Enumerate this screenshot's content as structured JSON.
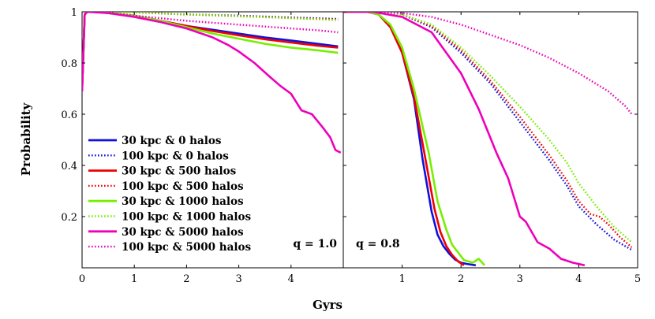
{
  "chart_data": {
    "type": "line",
    "xlabel": "Gyrs",
    "ylabel": "Probability",
    "y_ticks": [
      "0.2",
      "0.4",
      "0.6",
      "0.8",
      "1"
    ],
    "y_tick_values": [
      0.2,
      0.4,
      0.6,
      0.8,
      1.0
    ],
    "ylim": [
      0,
      1.0
    ],
    "panels": [
      {
        "label": "q = 1.0",
        "xlim": [
          0,
          5
        ],
        "x_ticks": [
          "0",
          "1",
          "2",
          "3",
          "4"
        ],
        "x_tick_values": [
          0,
          1,
          2,
          3,
          4
        ],
        "series": [
          {
            "name": "30 kpc & 0 halos",
            "color": "#1010dd",
            "style": "solid",
            "x": [
              0,
              0.05,
              0.1,
              0.3,
              0.5,
              1,
              1.5,
              2,
              2.5,
              3,
              3.5,
              4,
              4.5,
              4.9
            ],
            "y": [
              0.69,
              0.99,
              1.0,
              1.0,
              0.995,
              0.985,
              0.965,
              0.945,
              0.93,
              0.915,
              0.9,
              0.888,
              0.875,
              0.865
            ]
          },
          {
            "name": "100 kpc & 0 halos",
            "color": "#1010dd",
            "style": "dotted",
            "x": [
              0,
              0.05,
              0.1,
              0.5,
              1,
              2,
              3,
              4,
              4.9
            ],
            "y": [
              0.69,
              0.99,
              1.0,
              1.0,
              0.998,
              0.99,
              0.985,
              0.978,
              0.972
            ]
          },
          {
            "name": "30 kpc & 500 halos",
            "color": "#ee0000",
            "style": "solid",
            "x": [
              0,
              0.05,
              0.1,
              0.3,
              0.5,
              1,
              1.5,
              2,
              2.5,
              3,
              3.5,
              4,
              4.5,
              4.9
            ],
            "y": [
              0.69,
              0.99,
              1.0,
              1.0,
              0.995,
              0.985,
              0.965,
              0.945,
              0.925,
              0.908,
              0.893,
              0.88,
              0.868,
              0.86
            ]
          },
          {
            "name": "100 kpc & 500 halos",
            "color": "#ee0000",
            "style": "dotted",
            "x": [
              0,
              0.05,
              0.1,
              0.5,
              1,
              2,
              3,
              4,
              4.9
            ],
            "y": [
              0.69,
              0.99,
              1.0,
              1.0,
              0.998,
              0.99,
              0.983,
              0.976,
              0.97
            ]
          },
          {
            "name": "30 kpc & 1000 halos",
            "color": "#77ee00",
            "style": "solid",
            "x": [
              0,
              0.05,
              0.1,
              0.3,
              0.5,
              1,
              1.5,
              2,
              2.5,
              3,
              3.5,
              4,
              4.5,
              4.9
            ],
            "y": [
              0.69,
              0.99,
              1.0,
              1.0,
              0.995,
              0.985,
              0.965,
              0.94,
              0.915,
              0.895,
              0.875,
              0.86,
              0.85,
              0.84
            ]
          },
          {
            "name": "100 kpc & 1000 halos",
            "color": "#77ee00",
            "style": "dotted",
            "x": [
              0,
              0.05,
              0.1,
              0.5,
              1,
              2,
              3,
              4,
              4.9
            ],
            "y": [
              0.69,
              0.99,
              1.0,
              1.0,
              0.998,
              0.99,
              0.983,
              0.975,
              0.968
            ]
          },
          {
            "name": "30 kpc & 5000 halos",
            "color": "#ee00bb",
            "style": "solid",
            "x": [
              0,
              0.05,
              0.1,
              0.5,
              1,
              1.5,
              2,
              2.5,
              2.8,
              3,
              3.3,
              3.6,
              3.8,
              4,
              4.2,
              4.4,
              4.6,
              4.75,
              4.85,
              4.95
            ],
            "y": [
              0.69,
              0.99,
              1.0,
              0.995,
              0.98,
              0.96,
              0.935,
              0.9,
              0.87,
              0.845,
              0.8,
              0.745,
              0.71,
              0.68,
              0.615,
              0.6,
              0.55,
              0.51,
              0.46,
              0.45
            ]
          },
          {
            "name": "100 kpc & 5000 halos",
            "color": "#ee00bb",
            "style": "dotted",
            "x": [
              0,
              0.05,
              0.1,
              0.5,
              1,
              2,
              3,
              4,
              4.5,
              4.9
            ],
            "y": [
              0.69,
              0.99,
              1.0,
              0.995,
              0.985,
              0.965,
              0.95,
              0.935,
              0.928,
              0.92
            ]
          }
        ]
      },
      {
        "label": "q = 0.8",
        "xlim": [
          0,
          5
        ],
        "x_ticks": [
          "1",
          "2",
          "3",
          "4",
          "5"
        ],
        "x_tick_values": [
          1,
          2,
          3,
          4,
          5
        ],
        "series": [
          {
            "name": "30 kpc & 0 halos",
            "color": "#1010dd",
            "style": "solid",
            "x": [
              0,
              0.4,
              0.6,
              0.8,
              1.0,
              1.2,
              1.35,
              1.5,
              1.6,
              1.7,
              1.8,
              1.9,
              2.0,
              2.1,
              2.25
            ],
            "y": [
              1.0,
              1.0,
              0.99,
              0.94,
              0.84,
              0.66,
              0.42,
              0.22,
              0.13,
              0.085,
              0.055,
              0.032,
              0.02,
              0.015,
              0.01
            ]
          },
          {
            "name": "100 kpc & 0 halos",
            "color": "#1010dd",
            "style": "dotted",
            "x": [
              0,
              0.5,
              1.0,
              1.5,
              2.0,
              2.5,
              3.0,
              3.3,
              3.5,
              3.8,
              4.0,
              4.3,
              4.6,
              4.9
            ],
            "y": [
              1.0,
              1.0,
              0.99,
              0.94,
              0.84,
              0.72,
              0.57,
              0.48,
              0.42,
              0.32,
              0.24,
              0.17,
              0.11,
              0.07
            ]
          },
          {
            "name": "30 kpc & 500 halos",
            "color": "#ee0000",
            "style": "solid",
            "x": [
              0,
              0.4,
              0.6,
              0.8,
              1.0,
              1.2,
              1.4,
              1.55,
              1.65,
              1.75,
              1.85,
              1.95,
              2.05
            ],
            "y": [
              1.0,
              1.0,
              0.99,
              0.94,
              0.84,
              0.67,
              0.42,
              0.23,
              0.14,
              0.085,
              0.05,
              0.025,
              0.01
            ]
          },
          {
            "name": "100 kpc & 500 halos",
            "color": "#ee0000",
            "style": "dotted",
            "x": [
              0,
              0.5,
              1.0,
              1.5,
              2.0,
              2.5,
              3.0,
              3.3,
              3.5,
              3.8,
              4.0,
              4.2,
              4.35,
              4.5,
              4.7,
              4.9
            ],
            "y": [
              1.0,
              1.0,
              0.99,
              0.945,
              0.85,
              0.73,
              0.59,
              0.5,
              0.44,
              0.34,
              0.26,
              0.21,
              0.2,
              0.17,
              0.12,
              0.08
            ]
          },
          {
            "name": "30 kpc & 1000 halos",
            "color": "#77ee00",
            "style": "solid",
            "x": [
              0,
              0.4,
              0.6,
              0.8,
              1.0,
              1.2,
              1.45,
              1.6,
              1.75,
              1.85,
              1.95,
              2.05,
              2.2,
              2.3,
              2.4
            ],
            "y": [
              1.0,
              1.0,
              0.99,
              0.95,
              0.86,
              0.7,
              0.45,
              0.26,
              0.15,
              0.09,
              0.06,
              0.03,
              0.02,
              0.035,
              0.01
            ]
          },
          {
            "name": "100 kpc & 1000 halos",
            "color": "#77ee00",
            "style": "dotted",
            "x": [
              0,
              0.5,
              1.0,
              1.5,
              2.0,
              2.5,
              3.0,
              3.5,
              3.8,
              4.0,
              4.3,
              4.6,
              4.9
            ],
            "y": [
              1.0,
              1.0,
              0.99,
              0.95,
              0.86,
              0.75,
              0.63,
              0.5,
              0.41,
              0.33,
              0.24,
              0.16,
              0.1
            ]
          },
          {
            "name": "30 kpc & 5000 halos",
            "color": "#ee00bb",
            "style": "solid",
            "x": [
              0,
              0.5,
              1.0,
              1.5,
              2.0,
              2.3,
              2.6,
              2.8,
              3.0,
              3.1,
              3.3,
              3.5,
              3.7,
              3.9,
              4.1
            ],
            "y": [
              1.0,
              1.0,
              0.98,
              0.92,
              0.76,
              0.62,
              0.45,
              0.35,
              0.2,
              0.18,
              0.1,
              0.075,
              0.035,
              0.02,
              0.01
            ]
          },
          {
            "name": "100 kpc & 5000 halos",
            "color": "#ee00bb",
            "style": "dotted",
            "x": [
              0,
              0.5,
              1.0,
              1.5,
              2.0,
              2.5,
              3.0,
              3.5,
              4.0,
              4.5,
              4.8,
              4.9
            ],
            "y": [
              1.0,
              1.0,
              0.995,
              0.98,
              0.95,
              0.91,
              0.87,
              0.82,
              0.76,
              0.69,
              0.63,
              0.6
            ]
          }
        ]
      }
    ]
  }
}
